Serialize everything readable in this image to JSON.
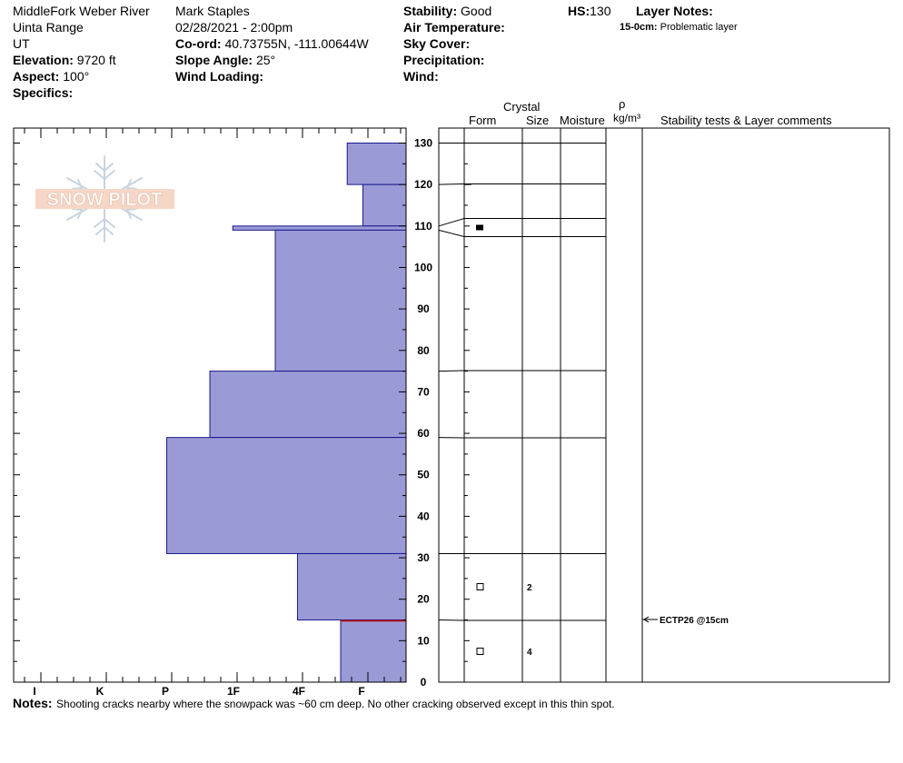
{
  "header": {
    "location": "MiddleFork Weber River",
    "range": "Uinta Range",
    "state": "UT",
    "elevation_label": "Elevation:",
    "elevation_value": "9720 ft",
    "aspect_label": "Aspect:",
    "aspect_value": "100°",
    "specifics_label": "Specifics:",
    "observer": "Mark Staples",
    "datetime": "02/28/2021 - 2:00pm",
    "coord_label": "Co-ord:",
    "coord_value": "40.73755N, -111.00644W",
    "slope_label": "Slope Angle:",
    "slope_value": "25°",
    "wind_loading_label": "Wind Loading:",
    "stability_label": "Stability:",
    "stability_value": "Good",
    "air_temp_label": "Air Temperature:",
    "sky_cover_label": "Sky Cover:",
    "precip_label": "Precipitation:",
    "wind_label": "Wind:",
    "hs_label": "HS:",
    "hs_value": "130",
    "layer_notes_label": "Layer Notes:",
    "layer_note_depth": "15-0cm:",
    "layer_note_text": "Problematic layer"
  },
  "logo": {
    "text": "SNOW PILOT"
  },
  "table_headers": {
    "crystal": "Crystal",
    "form": "Form",
    "size": "Size",
    "moisture": "Moisture",
    "rho": "ρ",
    "density_unit": "kg/m³",
    "comments": "Stability tests & Layer comments"
  },
  "notes": {
    "label": "Notes:",
    "text": "Shooting cracks nearby where the snowpack was ~60 cm deep. No other cracking observed except in this thin spot."
  },
  "chart_data": {
    "type": "bar",
    "orientation": "horizontal",
    "y_axis": {
      "range": [
        0,
        130
      ],
      "ticks": [
        0,
        10,
        20,
        30,
        40,
        50,
        60,
        70,
        80,
        90,
        100,
        110,
        120,
        130
      ]
    },
    "x_axis": {
      "categories": [
        "I",
        "K",
        "P",
        "1F",
        "4F",
        "F"
      ]
    },
    "hardness_layers": [
      {
        "top": 130,
        "bottom": 120,
        "hardness": 0.9
      },
      {
        "top": 120,
        "bottom": 110,
        "hardness": 0.66
      },
      {
        "top": 110,
        "bottom": 109,
        "hardness": 2.65
      },
      {
        "top": 109,
        "bottom": 75,
        "hardness": 2.0
      },
      {
        "top": 75,
        "bottom": 59,
        "hardness": 3.0
      },
      {
        "top": 59,
        "bottom": 31,
        "hardness": 3.66
      },
      {
        "top": 31,
        "bottom": 15,
        "hardness": 1.66
      },
      {
        "top": 15,
        "bottom": 0,
        "hardness": 1.0
      }
    ],
    "interfaces": [
      130,
      120,
      110,
      109,
      75,
      59,
      31,
      15
    ],
    "grains": [
      {
        "depth": 23,
        "form": "open-square",
        "size": "2"
      },
      {
        "depth": 7.5,
        "form": "open-square",
        "size": "4"
      },
      {
        "depth": 109,
        "form": "filled-square",
        "size": ""
      },
      {
        "depth": 120,
        "form": "dash",
        "size": ""
      }
    ],
    "tests": [
      {
        "depth": 15,
        "label": "ECTP26 @15cm"
      }
    ],
    "colors": {
      "fill": "#9a9ad6",
      "stroke": "#1a1a8c",
      "weak_layer": "#cc0000"
    }
  }
}
